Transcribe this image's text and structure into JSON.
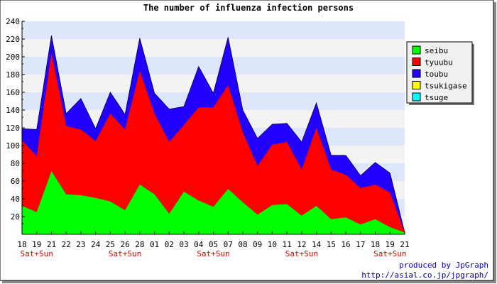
{
  "chart_data": {
    "type": "area",
    "stacked": true,
    "title": "The number of influenza infection persons",
    "ylim": [
      0,
      240
    ],
    "yticks": [
      20,
      40,
      60,
      80,
      100,
      120,
      140,
      160,
      180,
      200,
      220,
      240
    ],
    "grid": "horizontal bands",
    "legend_position": "top-right",
    "categories": [
      "18",
      "19",
      "21",
      "22",
      "23",
      "24",
      "25",
      "26",
      "28",
      "01",
      "02",
      "03",
      "04",
      "05",
      "07",
      "08",
      "09",
      "10",
      "11",
      "12",
      "14",
      "15",
      "16",
      "17",
      "18",
      "19",
      "21"
    ],
    "weekend_label": "Sat+Sun",
    "weekend_positions": [
      1,
      7,
      13,
      19,
      25
    ],
    "series": [
      {
        "name": "seibu",
        "color": "#00ff00",
        "values": [
          32,
          25,
          71,
          45,
          44,
          41,
          37,
          27,
          56,
          45,
          23,
          48,
          38,
          31,
          51,
          36,
          22,
          33,
          34,
          21,
          32,
          17,
          19,
          11,
          17,
          8,
          2
        ]
      },
      {
        "name": "tyuubu",
        "color": "#ff0000",
        "values": [
          74,
          63,
          133,
          77,
          74,
          64,
          99,
          91,
          128,
          91,
          81,
          75,
          105,
          112,
          117,
          79,
          55,
          68,
          70,
          52,
          88,
          56,
          48,
          41,
          39,
          39,
          0
        ]
      },
      {
        "name": "toubu",
        "color": "#2200ff",
        "values": [
          13,
          30,
          20,
          14,
          35,
          14,
          24,
          17,
          37,
          23,
          37,
          21,
          46,
          16,
          54,
          25,
          31,
          23,
          21,
          31,
          28,
          16,
          22,
          14,
          25,
          22,
          0
        ]
      },
      {
        "name": "tsukigase",
        "color": "#ffff00",
        "values": [
          0,
          0,
          0,
          0,
          0,
          0,
          0,
          0,
          0,
          0,
          0,
          0,
          0,
          0,
          0,
          0,
          0,
          0,
          0,
          0,
          0,
          0,
          0,
          0,
          0,
          0,
          0
        ]
      },
      {
        "name": "tsuge",
        "color": "#00ffff",
        "values": [
          0,
          0,
          0,
          0,
          0,
          0,
          0,
          0,
          0,
          0,
          0,
          0,
          0,
          0,
          0,
          0,
          0,
          0,
          0,
          0,
          0,
          0,
          0,
          0,
          0,
          0,
          0
        ]
      }
    ]
  },
  "footer": {
    "produced_by": "produced by JpGraph",
    "url": "http://asial.co.jp/jpgraph/"
  }
}
